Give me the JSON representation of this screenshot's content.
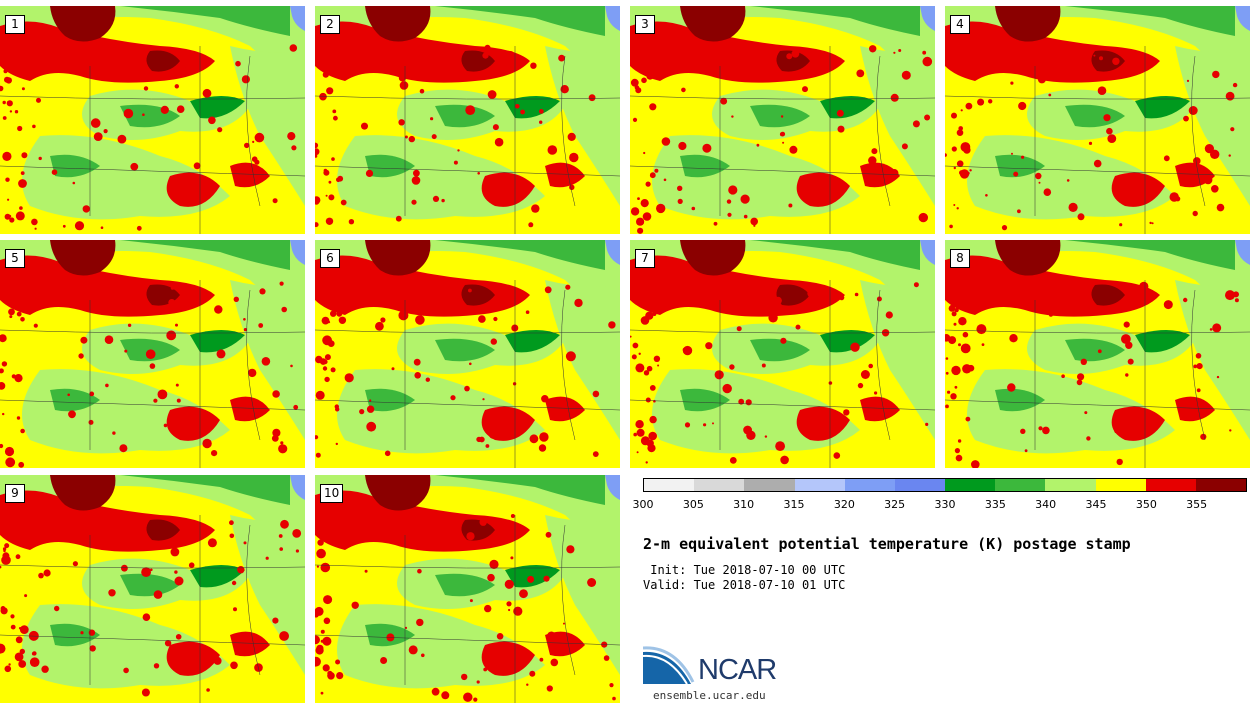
{
  "panels": [
    "1",
    "2",
    "3",
    "4",
    "5",
    "6",
    "7",
    "8",
    "9",
    "10"
  ],
  "colorbar": {
    "colors": [
      "#f2f2f2",
      "#d9d9d9",
      "#adadad",
      "#b4c6fa",
      "#7e9ef5",
      "#6a86f0",
      "#009a1e",
      "#3cb83c",
      "#b2f36b",
      "#ffff00",
      "#e60000",
      "#8b0000"
    ],
    "ticks": [
      "300",
      "305",
      "310",
      "315",
      "320",
      "325",
      "330",
      "335",
      "340",
      "345",
      "350",
      "355"
    ]
  },
  "title": "2-m equivalent potential temperature (K) postage stamp",
  "init": " Init: Tue 2018-07-10 00 UTC",
  "valid": "Valid: Tue 2018-07-10 01 UTC",
  "logo": {
    "text": "NCAR",
    "url": "ensemble.ucar.edu",
    "icon": "ncar-swoosh-logo"
  }
}
